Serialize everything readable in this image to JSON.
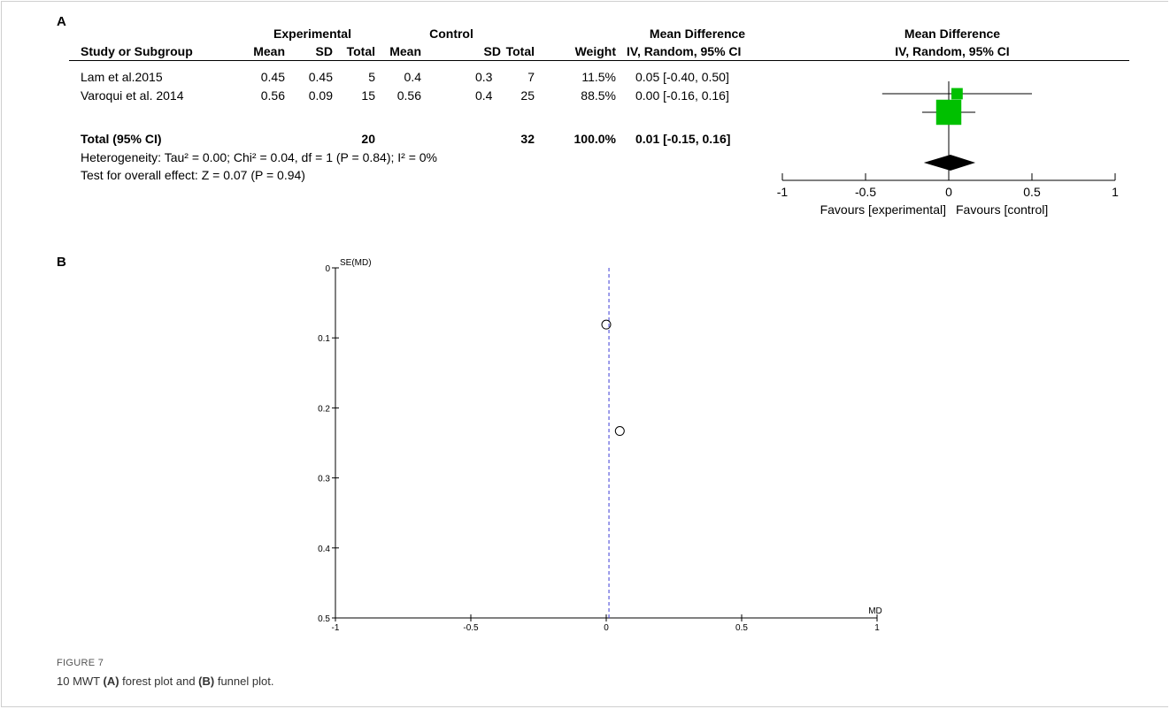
{
  "chart_data": [
    {
      "type": "forest",
      "panel_label": "A",
      "header": {
        "experimental": "Experimental",
        "control": "Control",
        "mean_difference": "Mean Difference",
        "plot_title": "Mean Difference",
        "columns": [
          "Study or Subgroup",
          "Mean",
          "SD",
          "Total",
          "Mean",
          "SD",
          "Total",
          "Weight",
          "IV, Random, 95% CI"
        ],
        "plot_subtitle": "IV, Random, 95% CI"
      },
      "studies": [
        {
          "name": "Lam et al.2015",
          "exp_mean": "0.45",
          "exp_sd": "0.45",
          "exp_total": "5",
          "ctl_mean": "0.4",
          "ctl_sd": "0.3",
          "ctl_total": "7",
          "weight": "11.5%",
          "ci_text": "0.05 [-0.40, 0.50]",
          "md": 0.05,
          "lo": -0.4,
          "hi": 0.5,
          "w": 11.5
        },
        {
          "name": "Varoqui et al. 2014",
          "exp_mean": "0.56",
          "exp_sd": "0.09",
          "exp_total": "15",
          "ctl_mean": "0.56",
          "ctl_sd": "0.4",
          "ctl_total": "25",
          "weight": "88.5%",
          "ci_text": "0.00 [-0.16, 0.16]",
          "md": 0.0,
          "lo": -0.16,
          "hi": 0.16,
          "w": 88.5
        }
      ],
      "total": {
        "name": "Total (95% CI)",
        "exp_total": "20",
        "ctl_total": "32",
        "weight": "100.0%",
        "ci_text": "0.01 [-0.15, 0.16]",
        "md": 0.01,
        "lo": -0.15,
        "hi": 0.16
      },
      "heterogeneity": "Heterogeneity: Tau² = 0.00; Chi² = 0.04, df = 1 (P = 0.84); I² = 0%",
      "overall_effect": "Test for overall effect: Z = 0.07 (P = 0.94)",
      "xlim": [
        -1,
        1
      ],
      "x_ticks": [
        "-1",
        "-0.5",
        "0",
        "0.5",
        "1"
      ],
      "x_tick_values": [
        -1,
        -0.5,
        0,
        0.5,
        1
      ],
      "favours_left": "Favours [experimental]",
      "favours_right": "Favours [control]",
      "colors": {
        "box": "#00c000",
        "diamond": "#000000"
      }
    },
    {
      "type": "scatter",
      "panel_label": "B",
      "ylabel": "SE(MD)",
      "xlabel": "MD",
      "xlim": [
        -1,
        1
      ],
      "ylim": [
        0,
        0.5
      ],
      "y_reversed": true,
      "x_ticks": [
        "-1",
        "-0.5",
        "0",
        "0.5",
        "1"
      ],
      "x_tick_values": [
        -1,
        -0.5,
        0,
        0.5,
        1
      ],
      "y_ticks": [
        "0",
        "0.1",
        "0.2",
        "0.3",
        "0.4",
        "0.5"
      ],
      "y_tick_values": [
        0,
        0.1,
        0.2,
        0.3,
        0.4,
        0.5
      ],
      "points": [
        {
          "x": 0.0,
          "y": 0.081
        },
        {
          "x": 0.05,
          "y": 0.233
        }
      ],
      "reference_line_x": 0.01,
      "colors": {
        "reference": "#3b3bd6"
      }
    }
  ],
  "caption": {
    "tag": "FIGURE 7",
    "text_prefix": "10 MWT ",
    "a_label": "(A)",
    "middle": " forest plot and ",
    "b_label": "(B)",
    "suffix": " funnel plot."
  }
}
